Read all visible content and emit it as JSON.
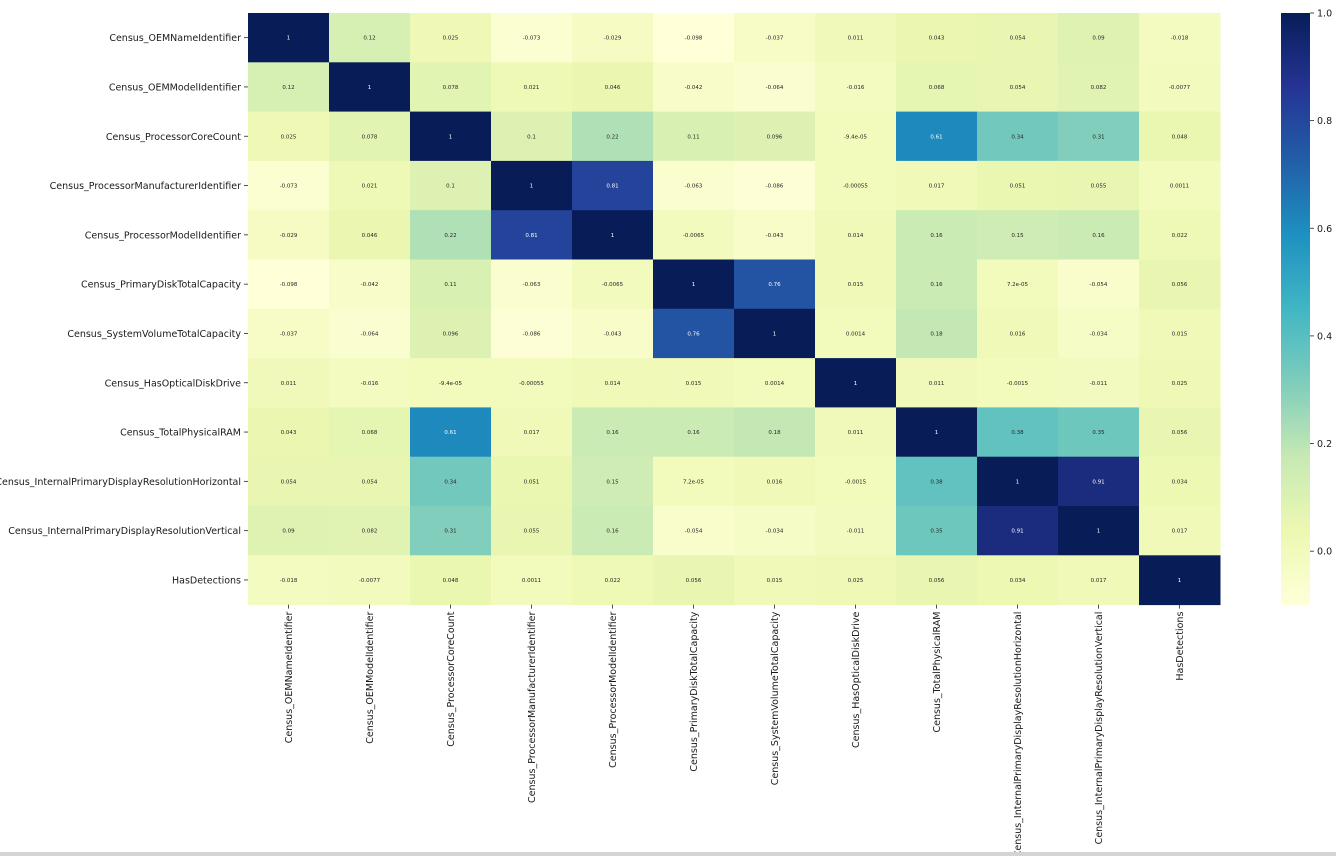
{
  "chart_data": {
    "type": "heatmap",
    "title": "",
    "xlabel": "",
    "ylabel": "",
    "colormap": "YlGnBu",
    "vmin": -0.1,
    "vmax": 1.0,
    "row_labels": [
      "Census_OEMNameIdentifier",
      "Census_OEMModelIdentifier",
      "Census_ProcessorCoreCount",
      "Census_ProcessorManufacturerIdentifier",
      "Census_ProcessorModelIdentifier",
      "Census_PrimaryDiskTotalCapacity",
      "Census_SystemVolumeTotalCapacity",
      "Census_HasOpticalDiskDrive",
      "Census_TotalPhysicalRAM",
      "Census_InternalPrimaryDisplayResolutionHorizontal",
      "Census_InternalPrimaryDisplayResolutionVertical",
      "HasDetections"
    ],
    "col_labels": [
      "Census_OEMNameIdentifier",
      "Census_OEMModelIdentifier",
      "Census_ProcessorCoreCount",
      "Census_ProcessorManufacturerIdentifier",
      "Census_ProcessorModelIdentifier",
      "Census_PrimaryDiskTotalCapacity",
      "Census_SystemVolumeTotalCapacity",
      "Census_HasOpticalDiskDrive",
      "Census_TotalPhysicalRAM",
      "Census_InternalPrimaryDisplayResolutionHorizontal",
      "Census_InternalPrimaryDisplayResolutionVertical",
      "HasDetections"
    ],
    "values": [
      [
        1,
        0.12,
        0.025,
        -0.073,
        -0.029,
        -0.098,
        -0.037,
        0.011,
        0.043,
        0.054,
        0.09,
        -0.018
      ],
      [
        0.12,
        1,
        0.078,
        0.021,
        0.046,
        -0.042,
        -0.064,
        -0.016,
        0.068,
        0.054,
        0.082,
        -0.0077
      ],
      [
        0.025,
        0.078,
        1,
        0.1,
        0.22,
        0.11,
        0.096,
        -9.4e-05,
        0.61,
        0.34,
        0.31,
        0.048
      ],
      [
        -0.073,
        0.021,
        0.1,
        1,
        0.81,
        -0.063,
        -0.086,
        -0.00055,
        0.017,
        0.051,
        0.055,
        0.0011
      ],
      [
        -0.029,
        0.046,
        0.22,
        0.81,
        1,
        -0.0065,
        -0.043,
        0.014,
        0.16,
        0.15,
        0.16,
        0.022
      ],
      [
        -0.098,
        -0.042,
        0.11,
        -0.063,
        -0.0065,
        1,
        0.76,
        0.015,
        0.16,
        7.2e-05,
        -0.054,
        0.056
      ],
      [
        -0.037,
        -0.064,
        0.096,
        -0.086,
        -0.043,
        0.76,
        1,
        0.0014,
        0.18,
        0.016,
        -0.034,
        0.015
      ],
      [
        0.011,
        -0.016,
        -9.4e-05,
        -0.00055,
        0.014,
        0.015,
        0.0014,
        1,
        0.011,
        -0.0015,
        -0.011,
        0.025
      ],
      [
        0.043,
        0.068,
        0.61,
        0.017,
        0.16,
        0.16,
        0.18,
        0.011,
        1,
        0.38,
        0.35,
        0.056
      ],
      [
        0.054,
        0.054,
        0.34,
        0.051,
        0.15,
        7.2e-05,
        0.016,
        -0.0015,
        0.38,
        1,
        0.91,
        0.034
      ],
      [
        0.09,
        0.082,
        0.31,
        0.055,
        0.16,
        -0.054,
        -0.034,
        -0.011,
        0.35,
        0.91,
        1,
        0.017
      ],
      [
        -0.018,
        -0.0077,
        0.048,
        0.0011,
        0.022,
        0.056,
        0.015,
        0.025,
        0.056,
        0.034,
        0.017,
        1
      ]
    ],
    "annotations": [
      [
        "1",
        "0.12",
        "0.025",
        "-0.073",
        "-0.029",
        "-0.098",
        "-0.037",
        "0.011",
        "0.043",
        "0.054",
        "0.09",
        "-0.018"
      ],
      [
        "0.12",
        "1",
        "0.078",
        "0.021",
        "0.046",
        "-0.042",
        "-0.064",
        "-0.016",
        "0.068",
        "0.054",
        "0.082",
        "-0.0077"
      ],
      [
        "0.025",
        "0.078",
        "1",
        "0.1",
        "0.22",
        "0.11",
        "0.096",
        "-9.4e-05",
        "0.61",
        "0.34",
        "0.31",
        "0.048"
      ],
      [
        "-0.073",
        "0.021",
        "0.1",
        "1",
        "0.81",
        "-0.063",
        "-0.086",
        "-0.00055",
        "0.017",
        "0.051",
        "0.055",
        "0.0011"
      ],
      [
        "-0.029",
        "0.046",
        "0.22",
        "0.81",
        "1",
        "-0.0065",
        "-0.043",
        "0.014",
        "0.16",
        "0.15",
        "0.16",
        "0.022"
      ],
      [
        "-0.098",
        "-0.042",
        "0.11",
        "-0.063",
        "-0.0065",
        "1",
        "0.76",
        "0.015",
        "0.16",
        "7.2e-05",
        "-0.054",
        "0.056"
      ],
      [
        "-0.037",
        "-0.064",
        "0.096",
        "-0.086",
        "-0.043",
        "0.76",
        "1",
        "0.0014",
        "0.18",
        "0.016",
        "-0.034",
        "0.015"
      ],
      [
        "0.011",
        "-0.016",
        "-9.4e-05",
        "-0.00055",
        "0.014",
        "0.015",
        "0.0014",
        "1",
        "0.011",
        "-0.0015",
        "-0.011",
        "0.025"
      ],
      [
        "0.043",
        "0.068",
        "0.61",
        "0.017",
        "0.16",
        "0.16",
        "0.18",
        "0.011",
        "1",
        "0.38",
        "0.35",
        "0.056"
      ],
      [
        "0.054",
        "0.054",
        "0.34",
        "0.051",
        "0.15",
        "7.2e-05",
        "0.016",
        "-0.0015",
        "0.38",
        "1",
        "0.91",
        "0.034"
      ],
      [
        "0.09",
        "0.082",
        "0.31",
        "0.055",
        "0.16",
        "-0.054",
        "-0.034",
        "-0.011",
        "0.35",
        "0.91",
        "1",
        "0.017"
      ],
      [
        "-0.018",
        "-0.0077",
        "0.048",
        "0.0011",
        "0.022",
        "0.056",
        "0.015",
        "0.025",
        "0.056",
        "0.034",
        "0.017",
        "1"
      ]
    ],
    "colorbar": {
      "ticks": [
        0.0,
        0.2,
        0.4,
        0.6,
        0.8,
        1.0
      ],
      "tick_labels": [
        "0.0",
        "0.2",
        "0.4",
        "0.6",
        "0.8",
        "1.0"
      ]
    },
    "legend": "colorbar-right",
    "grid": false
  }
}
